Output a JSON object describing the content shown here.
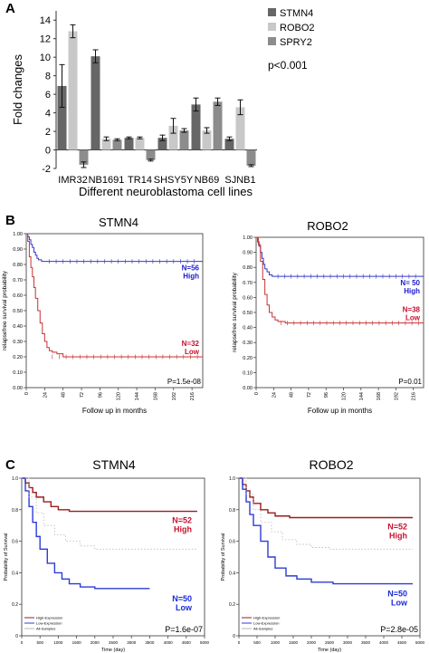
{
  "panel_labels": {
    "a": "A",
    "b": "B",
    "c": "C"
  },
  "colors": {
    "stmn4": "#666666",
    "robo2": "#c8c8c8",
    "spry2": "#8c8c8c",
    "km_high": "#3838c8",
    "km_low": "#c83232",
    "c_high": "#9a1c1c",
    "c_low": "#2c3cd8",
    "c_all": "#b8b8b8",
    "low_label": "#c8102e",
    "high_label": "#1a1ad0",
    "c_low_label": "#1a2ad8",
    "c_high_label": "#c8102e"
  },
  "chart_data": [
    {
      "type": "bar",
      "panel": "A",
      "categories": [
        "IMR32",
        "NB1691",
        "TR14",
        "SHSY5Y",
        "NB69",
        "SJNB1"
      ],
      "series": [
        {
          "name": "STMN4",
          "values": [
            6.9,
            10.1,
            1.3,
            1.3,
            4.9,
            1.2
          ],
          "errors": [
            2.3,
            0.7,
            0.1,
            0.3,
            0.7,
            0.2
          ]
        },
        {
          "name": "ROBO2",
          "values": [
            12.8,
            1.2,
            1.3,
            2.6,
            2.1,
            4.6
          ],
          "errors": [
            0.7,
            0.2,
            0.1,
            0.8,
            0.3,
            0.8
          ]
        },
        {
          "name": "SPRY2",
          "values": [
            -1.6,
            1.1,
            -1.1,
            2.1,
            5.2,
            -1.7
          ],
          "errors": [
            0.3,
            0.1,
            0.1,
            0.2,
            0.4,
            0.1
          ]
        }
      ],
      "ylabel": "Fold changes",
      "xlabel": "Different neuroblastoma cell lines",
      "ylim": [
        -2,
        15
      ],
      "yticks": [
        "-2",
        "0",
        "2",
        "4",
        "6",
        "8",
        "10",
        "12",
        "14"
      ],
      "annotation": "p<0.001",
      "legend": "top-right"
    },
    {
      "type": "line",
      "panel": "B",
      "title": "STMN4",
      "ylabel": "relapsefree survival probability",
      "xlabel": "Follow up in months",
      "ylim": [
        0,
        1
      ],
      "xlim": [
        0,
        230
      ],
      "yticks": [
        "0.00",
        "0.10",
        "0.20",
        "0.30",
        "0.40",
        "0.50",
        "0.60",
        "0.70",
        "0.80",
        "0.90",
        "1.00"
      ],
      "xticks": [
        "0",
        "24",
        "48",
        "72",
        "96",
        "120",
        "144",
        "168",
        "192",
        "216"
      ],
      "series": [
        {
          "group": "high",
          "label_n": "N=56",
          "label_level": "High",
          "x": [
            0,
            2,
            4,
            6,
            8,
            10,
            12,
            14,
            16,
            20,
            230
          ],
          "y": [
            1.0,
            0.98,
            0.96,
            0.93,
            0.91,
            0.88,
            0.86,
            0.84,
            0.83,
            0.82,
            0.82
          ]
        },
        {
          "group": "low",
          "label_n": "N=32",
          "label_level": "Low",
          "x": [
            0,
            2,
            4,
            6,
            8,
            10,
            12,
            15,
            18,
            21,
            24,
            27,
            30,
            34,
            40,
            48,
            230
          ],
          "y": [
            1.0,
            0.95,
            0.85,
            0.78,
            0.72,
            0.65,
            0.58,
            0.5,
            0.42,
            0.35,
            0.3,
            0.26,
            0.24,
            0.23,
            0.22,
            0.2,
            0.2
          ]
        }
      ],
      "annotation": "P=1.5e-08"
    },
    {
      "type": "line",
      "panel": "B",
      "title": "ROBO2",
      "ylabel": "relapsefree survival probability",
      "xlabel": "Follow up in months",
      "ylim": [
        0,
        1
      ],
      "xlim": [
        0,
        230
      ],
      "yticks": [
        "0.00",
        "0.10",
        "0.20",
        "0.30",
        "0.40",
        "0.50",
        "0.60",
        "0.70",
        "0.80",
        "0.90",
        "1.00"
      ],
      "xticks": [
        "0",
        "24",
        "48",
        "72",
        "96",
        "120",
        "144",
        "168",
        "192",
        "216"
      ],
      "series": [
        {
          "group": "high",
          "label_n": "N= 50",
          "label_level": "High",
          "x": [
            0,
            2,
            4,
            6,
            8,
            10,
            12,
            15,
            18,
            22,
            230
          ],
          "y": [
            1.0,
            0.97,
            0.94,
            0.9,
            0.86,
            0.82,
            0.79,
            0.77,
            0.75,
            0.74,
            0.74
          ]
        },
        {
          "group": "low",
          "label_n": "N=38",
          "label_level": "Low",
          "x": [
            0,
            3,
            6,
            9,
            12,
            15,
            18,
            22,
            26,
            30,
            35,
            40,
            230
          ],
          "y": [
            1.0,
            0.95,
            0.84,
            0.72,
            0.62,
            0.55,
            0.5,
            0.47,
            0.45,
            0.44,
            0.44,
            0.43,
            0.43
          ]
        }
      ],
      "annotation": "P=0.01"
    },
    {
      "type": "line",
      "panel": "C",
      "title": "STMN4",
      "ylabel": "Probability of Survival",
      "xlabel": "Time (day)",
      "ylim": [
        0,
        1
      ],
      "xlim": [
        0,
        5000
      ],
      "yticks": [
        "0",
        "0.2",
        "0.4",
        "0.6",
        "0.8",
        "1.0"
      ],
      "xticks": [
        "0",
        "500",
        "1000",
        "1500",
        "2000",
        "2500",
        "3000",
        "3500",
        "4000",
        "4500",
        "5000"
      ],
      "legend_items": [
        "High-Expression",
        "Low-Expression",
        "All-Samples"
      ],
      "series": [
        {
          "group": "high",
          "label_n": "N=52",
          "label_level": "High",
          "x": [
            0,
            100,
            200,
            300,
            400,
            600,
            800,
            1000,
            1300,
            1600,
            4800
          ],
          "y": [
            1.0,
            0.97,
            0.94,
            0.91,
            0.88,
            0.85,
            0.82,
            0.8,
            0.79,
            0.79,
            0.79
          ]
        },
        {
          "group": "low",
          "label_n": "N=50",
          "label_level": "Low",
          "x": [
            0,
            100,
            200,
            300,
            400,
            500,
            700,
            900,
            1100,
            1300,
            1600,
            2000,
            2500,
            3500
          ],
          "y": [
            1.0,
            0.92,
            0.82,
            0.72,
            0.63,
            0.55,
            0.46,
            0.4,
            0.36,
            0.33,
            0.31,
            0.3,
            0.3,
            0.3
          ]
        },
        {
          "group": "all",
          "x": [
            0,
            200,
            400,
            600,
            900,
            1200,
            1600,
            2000,
            2500,
            4800
          ],
          "y": [
            1.0,
            0.88,
            0.78,
            0.7,
            0.64,
            0.6,
            0.57,
            0.55,
            0.55,
            0.55
          ]
        }
      ],
      "annotation": "P=1.6e-07"
    },
    {
      "type": "line",
      "panel": "C",
      "title": "ROBO2",
      "ylabel": "Probability of Survival",
      "xlabel": "Time (day)",
      "ylim": [
        0,
        1
      ],
      "xlim": [
        0,
        5000
      ],
      "yticks": [
        "0",
        "0.2",
        "0.4",
        "0.6",
        "0.8",
        "1.0"
      ],
      "xticks": [
        "0",
        "500",
        "1000",
        "1500",
        "2000",
        "2500",
        "3000",
        "3500",
        "4000",
        "4500",
        "5000"
      ],
      "legend_items": [
        "High-Expression",
        "Low-Expression",
        "All-Samples"
      ],
      "series": [
        {
          "group": "high",
          "label_n": "N=52",
          "label_level": "High",
          "x": [
            0,
            100,
            200,
            300,
            400,
            600,
            800,
            1000,
            1400,
            1800,
            4800
          ],
          "y": [
            1.0,
            0.96,
            0.92,
            0.88,
            0.84,
            0.8,
            0.78,
            0.76,
            0.75,
            0.75,
            0.75
          ]
        },
        {
          "group": "low",
          "label_n": "N=50",
          "label_level": "Low",
          "x": [
            0,
            100,
            200,
            300,
            400,
            600,
            800,
            1000,
            1300,
            1600,
            2000,
            2600,
            4800
          ],
          "y": [
            1.0,
            0.93,
            0.85,
            0.77,
            0.7,
            0.6,
            0.5,
            0.43,
            0.38,
            0.36,
            0.34,
            0.33,
            0.33
          ]
        },
        {
          "group": "all",
          "x": [
            0,
            200,
            400,
            600,
            900,
            1200,
            1600,
            2000,
            2500,
            4800
          ],
          "y": [
            1.0,
            0.9,
            0.8,
            0.72,
            0.66,
            0.61,
            0.58,
            0.56,
            0.55,
            0.55
          ]
        }
      ],
      "annotation": "P=2.8e-05"
    }
  ]
}
